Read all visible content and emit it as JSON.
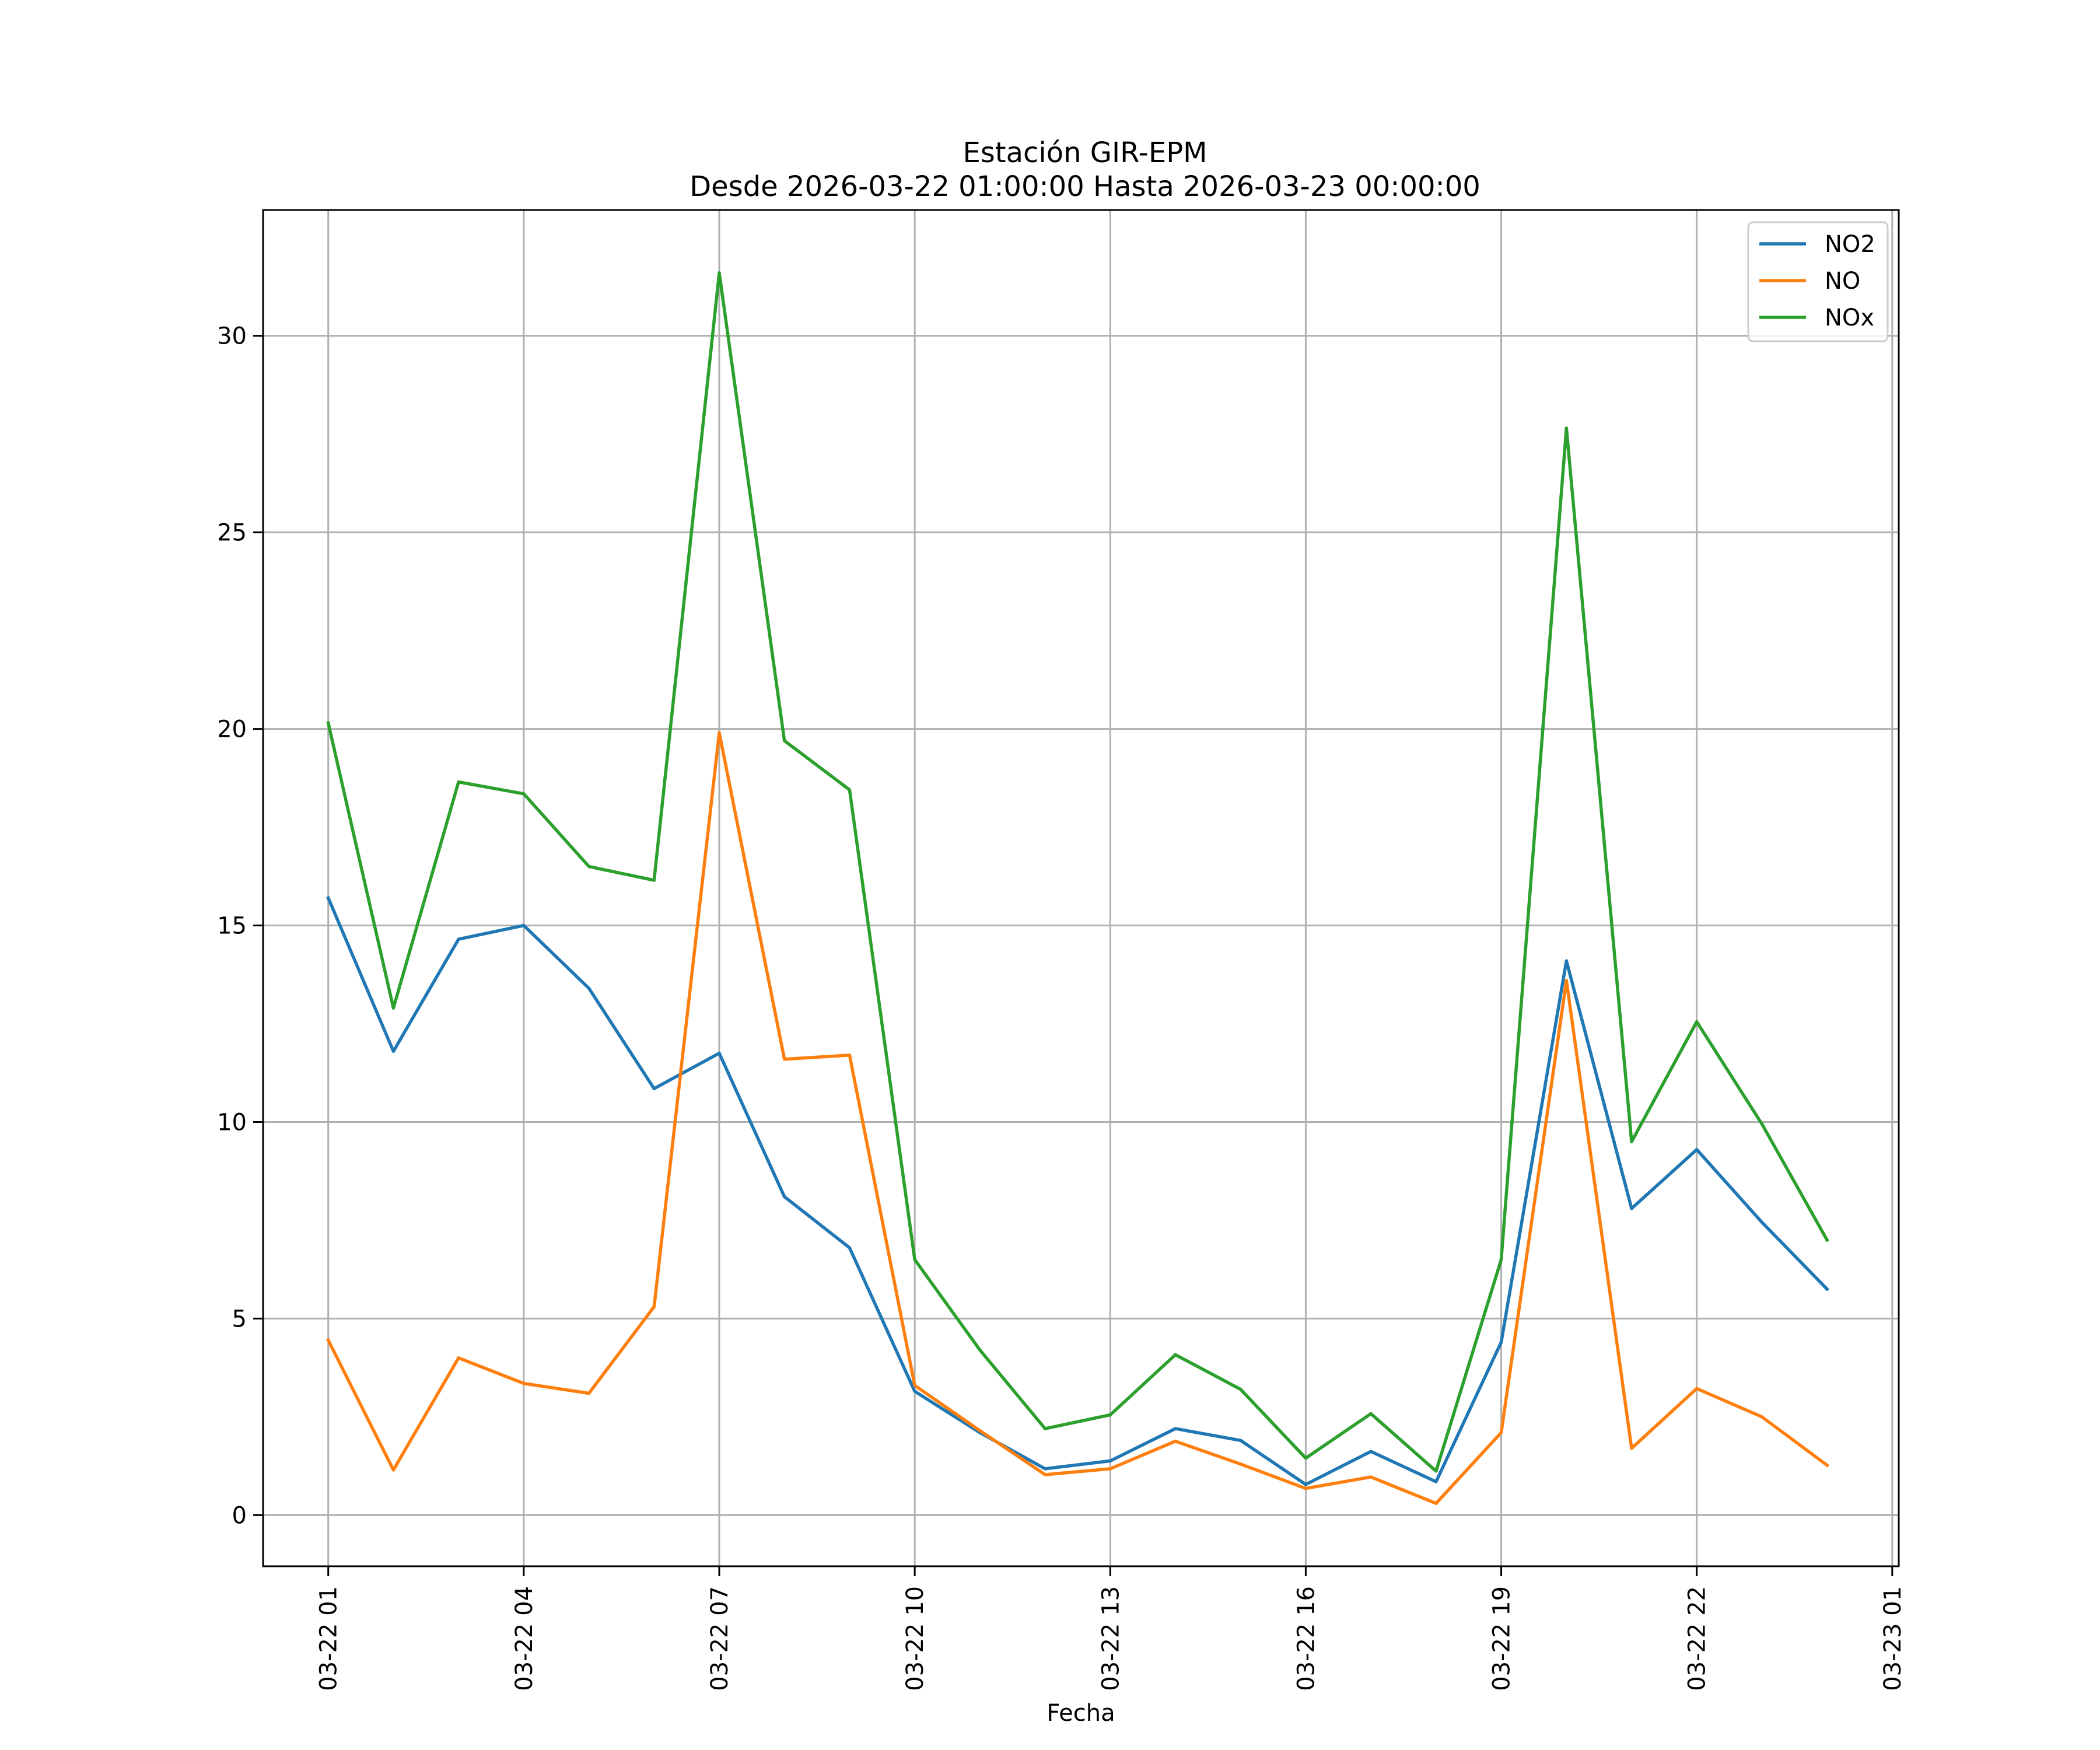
{
  "chart_data": {
    "type": "line",
    "title": "Estación GIR-EPM",
    "subtitle": "Desde 2026-03-22 01:00:00 Hasta 2026-03-23 00:00:00",
    "xlabel": "Fecha",
    "ylabel": "",
    "x": [
      "2026-03-22 01:00",
      "2026-03-22 02:00",
      "2026-03-22 03:00",
      "2026-03-22 04:00",
      "2026-03-22 05:00",
      "2026-03-22 06:00",
      "2026-03-22 07:00",
      "2026-03-22 08:00",
      "2026-03-22 09:00",
      "2026-03-22 10:00",
      "2026-03-22 11:00",
      "2026-03-22 12:00",
      "2026-03-22 13:00",
      "2026-03-22 14:00",
      "2026-03-22 15:00",
      "2026-03-22 16:00",
      "2026-03-22 17:00",
      "2026-03-22 18:00",
      "2026-03-22 19:00",
      "2026-03-22 20:00",
      "2026-03-22 21:00",
      "2026-03-22 22:00",
      "2026-03-22 23:00",
      "2026-03-23 00:00"
    ],
    "xlim": [
      "2026-03-22 00:00",
      "2026-03-23 01:06"
    ],
    "ylim": [
      -1.3,
      33.2
    ],
    "x_ticks": [
      "03-22 01",
      "03-22 04",
      "03-22 07",
      "03-22 10",
      "03-22 13",
      "03-22 16",
      "03-22 19",
      "03-22 22",
      "03-23 01"
    ],
    "x_tick_values": [
      "2026-03-22 01:00",
      "2026-03-22 04:00",
      "2026-03-22 07:00",
      "2026-03-22 10:00",
      "2026-03-22 13:00",
      "2026-03-22 16:00",
      "2026-03-22 19:00",
      "2026-03-22 22:00",
      "2026-03-23 01:00"
    ],
    "y_ticks": [
      0,
      5,
      10,
      15,
      20,
      25,
      30
    ],
    "grid": true,
    "legend_position": "top-right",
    "series": [
      {
        "name": "NO2",
        "color": "#1f77b4",
        "values": [
          15.7,
          11.8,
          14.65,
          15.0,
          13.4,
          10.85,
          11.75,
          8.1,
          6.8,
          3.15,
          2.1,
          1.18,
          1.38,
          2.2,
          1.9,
          0.78,
          1.62,
          0.85,
          4.4,
          14.1,
          7.8,
          9.3,
          7.45,
          5.75
        ]
      },
      {
        "name": "NO",
        "color": "#ff7f0e",
        "values": [
          4.45,
          1.15,
          4.0,
          3.35,
          3.1,
          5.3,
          19.9,
          11.6,
          11.7,
          3.3,
          2.15,
          1.03,
          1.18,
          1.88,
          1.3,
          0.68,
          0.97,
          0.3,
          2.1,
          13.6,
          1.7,
          3.22,
          2.5,
          1.27
        ]
      },
      {
        "name": "NOx",
        "color": "#2ca02c",
        "values": [
          20.15,
          12.9,
          18.65,
          18.35,
          16.5,
          16.15,
          31.6,
          19.7,
          18.45,
          6.5,
          4.2,
          2.2,
          2.55,
          4.08,
          3.2,
          1.45,
          2.58,
          1.12,
          6.5,
          27.65,
          9.5,
          12.55,
          9.95,
          7.0
        ]
      }
    ]
  }
}
